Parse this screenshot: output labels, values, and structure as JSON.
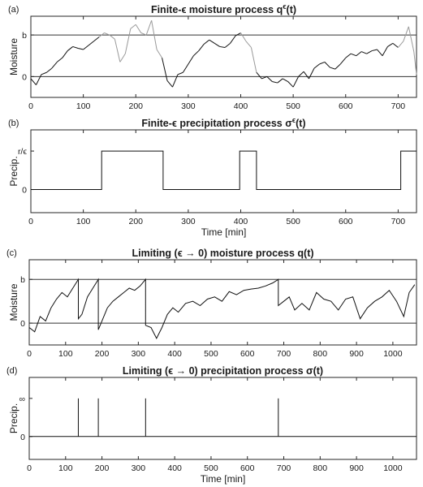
{
  "chart_data": [
    {
      "type": "line",
      "panel_tag": "(a)",
      "title": "Finite-ϵ moisture process q^ϵ(t)",
      "xlabel": "",
      "ylabel": "Moisture",
      "xlim": [
        0,
        735
      ],
      "ylim": [
        -0.5,
        1.45
      ],
      "xticks": [
        0,
        100,
        200,
        300,
        400,
        500,
        600,
        700
      ],
      "yticks": [
        {
          "value": 0,
          "label": "0"
        },
        {
          "value": 1,
          "label": "b"
        }
      ],
      "reference_lines": [
        0,
        1
      ],
      "grid": false,
      "series": [
        {
          "color_wet": "#9a9a9a",
          "color_dry": "#111111",
          "x": [
            0,
            10,
            20,
            30,
            40,
            50,
            60,
            70,
            80,
            90,
            100,
            110,
            120,
            130,
            140,
            150,
            160,
            170,
            180,
            190,
            200,
            210,
            220,
            230,
            240,
            250,
            260,
            270,
            280,
            290,
            300,
            310,
            320,
            330,
            340,
            350,
            360,
            370,
            380,
            390,
            400,
            410,
            420,
            430,
            440,
            450,
            460,
            470,
            480,
            490,
            500,
            510,
            520,
            530,
            540,
            550,
            560,
            570,
            580,
            590,
            600,
            610,
            620,
            630,
            640,
            650,
            660,
            670,
            680,
            690,
            700,
            710,
            720,
            730,
            735
          ],
          "y": [
            -0.05,
            -0.2,
            0.05,
            0.1,
            0.2,
            0.35,
            0.45,
            0.62,
            0.72,
            0.68,
            0.65,
            0.75,
            0.85,
            0.95,
            1.05,
            1.0,
            0.9,
            0.35,
            0.55,
            1.15,
            1.25,
            1.05,
            1.0,
            1.35,
            0.65,
            0.45,
            -0.1,
            -0.25,
            0.05,
            0.1,
            0.3,
            0.5,
            0.62,
            0.78,
            0.88,
            0.8,
            0.72,
            0.7,
            0.8,
            0.98,
            1.05,
            0.85,
            0.7,
            0.1,
            -0.05,
            0.0,
            -0.12,
            -0.15,
            -0.05,
            -0.12,
            -0.25,
            0.0,
            0.12,
            -0.05,
            0.2,
            0.3,
            0.35,
            0.22,
            0.18,
            0.3,
            0.45,
            0.55,
            0.5,
            0.6,
            0.55,
            0.62,
            0.65,
            0.5,
            0.72,
            0.8,
            0.7,
            0.85,
            1.2,
            0.6,
            0.05
          ]
        }
      ]
    },
    {
      "type": "line",
      "panel_tag": "(b)",
      "title": "Finite-ϵ precipitation process σ^ϵ(t)",
      "xlabel": "Time [min]",
      "ylabel": "Precip.",
      "xlim": [
        0,
        735
      ],
      "ylim": [
        -0.6,
        1.55
      ],
      "xticks": [
        0,
        100,
        200,
        300,
        400,
        500,
        600,
        700
      ],
      "yticks": [
        {
          "value": 0,
          "label": "0"
        },
        {
          "value": 1,
          "label": "r/ϵ"
        }
      ],
      "grid": false,
      "series": [
        {
          "x": [
            0,
            135,
            135,
            252,
            252,
            398,
            398,
            430,
            430,
            705,
            705,
            735
          ],
          "y": [
            0,
            0,
            1,
            1,
            0,
            0,
            1,
            1,
            0,
            0,
            1,
            1
          ]
        }
      ]
    },
    {
      "type": "line",
      "panel_tag": "(c)",
      "title": "Limiting (ϵ → 0) moisture process q(t)",
      "xlabel": "",
      "ylabel": "Moisture",
      "xlim": [
        0,
        1065
      ],
      "ylim": [
        -0.5,
        1.45
      ],
      "xticks": [
        0,
        100,
        200,
        300,
        400,
        500,
        600,
        700,
        800,
        900,
        1000
      ],
      "yticks": [
        {
          "value": 0,
          "label": "0"
        },
        {
          "value": 1,
          "label": "b"
        }
      ],
      "reference_lines": [
        0,
        1
      ],
      "grid": false,
      "series": [
        {
          "x": [
            0,
            15,
            30,
            45,
            60,
            75,
            90,
            105,
            120,
            135,
            135,
            145,
            160,
            175,
            190,
            190,
            200,
            215,
            230,
            245,
            260,
            275,
            290,
            305,
            320,
            320,
            335,
            350,
            365,
            380,
            395,
            410,
            430,
            450,
            470,
            490,
            510,
            530,
            550,
            570,
            590,
            610,
            630,
            650,
            670,
            685,
            685,
            700,
            715,
            730,
            750,
            770,
            790,
            810,
            830,
            850,
            870,
            890,
            910,
            930,
            950,
            970,
            990,
            1010,
            1030,
            1045,
            1060
          ],
          "y": [
            -0.1,
            -0.2,
            0.15,
            0.05,
            0.35,
            0.55,
            0.7,
            0.6,
            0.8,
            1.0,
            0.1,
            0.2,
            0.6,
            0.8,
            1.0,
            -0.15,
            0.05,
            0.35,
            0.5,
            0.6,
            0.7,
            0.8,
            0.75,
            0.85,
            1.0,
            -0.05,
            -0.1,
            -0.35,
            -0.1,
            0.2,
            0.35,
            0.25,
            0.45,
            0.5,
            0.4,
            0.55,
            0.6,
            0.5,
            0.72,
            0.65,
            0.75,
            0.78,
            0.8,
            0.85,
            0.92,
            1.0,
            0.4,
            0.5,
            0.6,
            0.3,
            0.45,
            0.3,
            0.7,
            0.55,
            0.5,
            0.3,
            0.55,
            0.6,
            0.1,
            0.35,
            0.5,
            0.6,
            0.75,
            0.5,
            0.15,
            0.7,
            0.88
          ]
        }
      ]
    },
    {
      "type": "line",
      "panel_tag": "(d)",
      "title": "Limiting (ϵ → 0) precipitation process σ(t)",
      "xlabel": "Time [min]",
      "ylabel": "Precip.",
      "xlim": [
        0,
        1065
      ],
      "ylim": [
        -0.6,
        1.55
      ],
      "xticks": [
        0,
        100,
        200,
        300,
        400,
        500,
        600,
        700,
        800,
        900,
        1000
      ],
      "yticks": [
        {
          "value": 0,
          "label": "0"
        },
        {
          "value": 1,
          "label": "∞"
        }
      ],
      "grid": false,
      "spikes_x": [
        135,
        190,
        320,
        685
      ],
      "series": [
        {
          "x": [
            0,
            1065
          ],
          "y": [
            0,
            0
          ]
        }
      ]
    }
  ]
}
